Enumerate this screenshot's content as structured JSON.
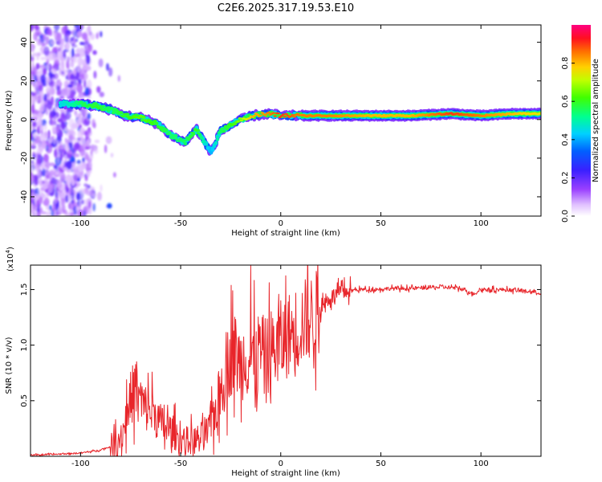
{
  "title": "C2E6.2025.317.19.53.E10",
  "colors": {
    "series": "#e8252a",
    "gridline": "#000000",
    "background": "#ffffff"
  },
  "chart_data": [
    {
      "type": "heatmap",
      "name": "spectrogram",
      "xlabel": "Height of straight line (km)",
      "ylabel": "Frequency (Hz)",
      "xlim": [
        -125,
        130
      ],
      "ylim": [
        -50,
        49
      ],
      "xticks": [
        -100,
        -50,
        0,
        50,
        100
      ],
      "yticks": [
        -40,
        -20,
        0,
        20,
        40
      ],
      "colorbar": {
        "label": "Normalized spectral amplitude",
        "range": [
          0,
          1
        ],
        "ticks": [
          "0.0",
          "0.2",
          "0.4",
          "0.6",
          "0.8"
        ],
        "tick_values": [
          0.0,
          0.2,
          0.4,
          0.6,
          0.8
        ]
      },
      "ridge": [
        {
          "x": -110,
          "f": 8,
          "a": 0.45
        },
        {
          "x": -100,
          "f": 8,
          "a": 0.55
        },
        {
          "x": -92,
          "f": 7,
          "a": 0.6
        },
        {
          "x": -85,
          "f": 5,
          "a": 0.55
        },
        {
          "x": -78,
          "f": 2,
          "a": 0.6
        },
        {
          "x": -70,
          "f": 1,
          "a": 0.65
        },
        {
          "x": -62,
          "f": -2,
          "a": 0.6
        },
        {
          "x": -55,
          "f": -8,
          "a": 0.55
        },
        {
          "x": -48,
          "f": -12,
          "a": 0.55
        },
        {
          "x": -42,
          "f": -5,
          "a": 0.6
        },
        {
          "x": -35,
          "f": -17,
          "a": 0.4
        },
        {
          "x": -30,
          "f": -6,
          "a": 0.55
        },
        {
          "x": -22,
          "f": -1,
          "a": 0.65
        },
        {
          "x": -14,
          "f": 2,
          "a": 0.8
        },
        {
          "x": -6,
          "f": 3,
          "a": 0.85
        },
        {
          "x": 0,
          "f": 2,
          "a": 0.9
        },
        {
          "x": 10,
          "f": 2,
          "a": 0.85
        },
        {
          "x": 25,
          "f": 2,
          "a": 0.85
        },
        {
          "x": 45,
          "f": 2,
          "a": 0.8
        },
        {
          "x": 65,
          "f": 2,
          "a": 0.8
        },
        {
          "x": 85,
          "f": 3,
          "a": 0.9
        },
        {
          "x": 100,
          "f": 2,
          "a": 0.85
        },
        {
          "x": 115,
          "f": 3,
          "a": 0.8
        },
        {
          "x": 130,
          "f": 3,
          "a": 0.75
        }
      ]
    },
    {
      "type": "line",
      "name": "snr",
      "xlabel": "Height of straight line (km)",
      "ylabel": "SNR (10 * v/v)",
      "y_multiplier_label": "(x10",
      "y_multiplier_exp": "4",
      "y_multiplier_close": ")",
      "xlim": [
        -125,
        130
      ],
      "ylim": [
        0,
        1.72
      ],
      "xticks": [
        -100,
        -50,
        0,
        50,
        100
      ],
      "yticks": [
        0.5,
        1.0,
        1.5
      ],
      "ytick_labels": [
        "0.5",
        "1.0",
        "1.5"
      ],
      "series": [
        {
          "name": "SNR",
          "x": [
            -125,
            -110,
            -100,
            -92,
            -86,
            -82,
            -79,
            -77,
            -75,
            -73,
            -71,
            -69,
            -66,
            -63,
            -60,
            -57,
            -54,
            -50,
            -46,
            -42,
            -39,
            -36,
            -34,
            -32,
            -30,
            -28,
            -26,
            -24,
            -22,
            -20,
            -18,
            -16,
            -14,
            -12,
            -10,
            -8,
            -6,
            -4,
            -2,
            0,
            3,
            6,
            9,
            12,
            15,
            18,
            21,
            24,
            28,
            32,
            38,
            45,
            55,
            65,
            75,
            85,
            92,
            96,
            100,
            110,
            120,
            130
          ],
          "values": [
            0.01,
            0.02,
            0.03,
            0.05,
            0.08,
            0.12,
            0.2,
            0.38,
            0.52,
            0.62,
            0.55,
            0.45,
            0.42,
            0.38,
            0.3,
            0.25,
            0.22,
            0.15,
            0.14,
            0.15,
            0.18,
            0.22,
            0.35,
            0.45,
            0.6,
            0.75,
            0.85,
            0.95,
            0.9,
            0.82,
            0.9,
            0.88,
            0.85,
            0.9,
            0.95,
            0.88,
            0.92,
            0.96,
            1.0,
            1.02,
            1.08,
            1.12,
            1.18,
            1.22,
            1.25,
            1.3,
            1.36,
            1.42,
            1.46,
            1.48,
            1.5,
            1.5,
            1.51,
            1.51,
            1.52,
            1.52,
            1.5,
            1.46,
            1.5,
            1.5,
            1.49,
            1.47
          ]
        }
      ]
    }
  ]
}
